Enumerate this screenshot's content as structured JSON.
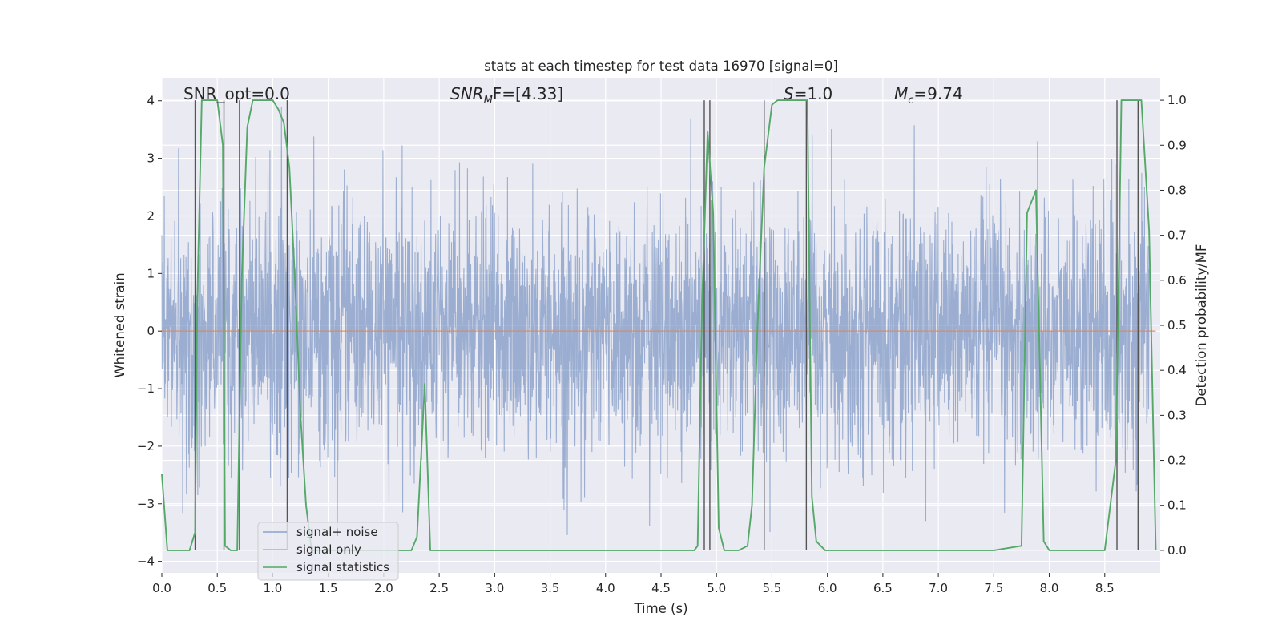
{
  "chart_data": {
    "type": "line",
    "title": "stats at each timestep for test data 16970 [signal=0]",
    "xlabel": "Time (s)",
    "ylabel_left": "Whitened strain",
    "ylabel_right": "Detection probability/MF",
    "xlim": [
      0.0,
      9.0
    ],
    "ylim_left": [
      -4.2,
      4.4
    ],
    "ylim_right": [
      -0.05,
      1.05
    ],
    "x_ticks": [
      "0.0",
      "0.5",
      "1.0",
      "1.5",
      "2.0",
      "2.5",
      "3.0",
      "3.5",
      "4.0",
      "4.5",
      "5.0",
      "5.5",
      "6.0",
      "6.5",
      "7.0",
      "7.5",
      "8.0",
      "8.5"
    ],
    "y_ticks_left": [
      "4",
      "3",
      "2",
      "1",
      "0",
      "−1",
      "−2",
      "−3",
      "−4"
    ],
    "y_ticks_right": [
      "1.0",
      "0.9",
      "0.8",
      "0.7",
      "0.6",
      "0.5",
      "0.4",
      "0.3",
      "0.2",
      "0.1",
      "0.0"
    ],
    "grid": true,
    "legend_position": "lower-left",
    "annotations": {
      "snr_opt": "SNR_opt=0.0",
      "snr_mf_name": "SNR",
      "snr_mf_sub": "M",
      "snr_mf_rest": "F=[4.33]",
      "s_name": "S",
      "s_rest": "=1.0",
      "mc_name": "M",
      "mc_sub": "c",
      "mc_rest": "=9.74"
    },
    "series": [
      {
        "name": "signal+ noise",
        "color": "#4c72b0",
        "axis": "left",
        "description_kind": "noise",
        "duration": 8.9,
        "sample_rate": 2048
      },
      {
        "name": "signal only",
        "color": "#dd8452",
        "axis": "left",
        "constant_value": 0.0
      },
      {
        "name": "signal statistics",
        "color": "#55a868",
        "axis": "right",
        "x": [
          0.0,
          0.05,
          0.1,
          0.15,
          0.25,
          0.3,
          0.32,
          0.36,
          0.4,
          0.5,
          0.55,
          0.57,
          0.62,
          0.68,
          0.72,
          0.77,
          0.82,
          0.88,
          1.0,
          1.05,
          1.1,
          1.15,
          1.2,
          1.25,
          1.3,
          1.35,
          1.5,
          2.0,
          2.25,
          2.3,
          2.37,
          2.42,
          2.47,
          2.55,
          3.0,
          3.5,
          4.0,
          4.5,
          4.8,
          4.83,
          4.87,
          4.92,
          4.97,
          5.02,
          5.07,
          5.2,
          5.28,
          5.32,
          5.37,
          5.43,
          5.5,
          5.55,
          5.7,
          5.82,
          5.86,
          5.9,
          5.98,
          6.2,
          6.5,
          7.0,
          7.5,
          7.75,
          7.8,
          7.88,
          7.95,
          8.0,
          8.05,
          8.5,
          8.6,
          8.65,
          8.7,
          8.75,
          8.83,
          8.9,
          8.96
        ],
        "y": [
          0.17,
          0.0,
          0.0,
          0.0,
          0.0,
          0.04,
          0.56,
          1.0,
          1.0,
          1.0,
          0.9,
          0.01,
          0.0,
          0.0,
          0.6,
          0.94,
          1.0,
          1.0,
          1.0,
          0.98,
          0.95,
          0.85,
          0.6,
          0.3,
          0.1,
          0.0,
          0.0,
          0.0,
          0.0,
          0.03,
          0.37,
          0.0,
          0.0,
          0.0,
          0.0,
          0.0,
          0.0,
          0.0,
          0.0,
          0.01,
          0.55,
          0.93,
          0.75,
          0.05,
          0.0,
          0.0,
          0.01,
          0.1,
          0.5,
          0.85,
          0.99,
          1.0,
          1.0,
          1.0,
          0.12,
          0.02,
          0.0,
          0.0,
          0.0,
          0.0,
          0.0,
          0.01,
          0.75,
          0.8,
          0.02,
          0.0,
          0.0,
          0.0,
          0.2,
          1.0,
          1.0,
          1.0,
          1.0,
          0.71,
          0.0
        ]
      }
    ],
    "vertical_markers": [
      0.3,
      0.56,
      0.7,
      1.13,
      4.89,
      4.94,
      5.43,
      5.81,
      8.61,
      8.8
    ]
  }
}
